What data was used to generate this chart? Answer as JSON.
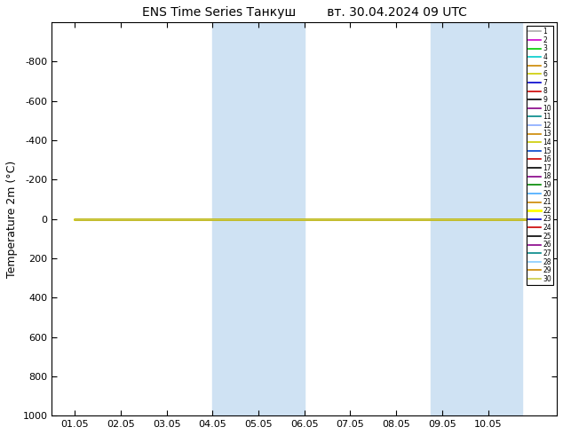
{
  "title": "ENS Time Series Танкуш        вт. 30.04.2024 09 UTC",
  "ylabel": "Temperature 2m (°C)",
  "ylim": [
    -1000,
    1000
  ],
  "yticks": [
    -800,
    -600,
    -400,
    -200,
    0,
    200,
    400,
    600,
    800,
    1000
  ],
  "ytick_labels": [
    "-800",
    "-600",
    "-400",
    "-200",
    "0",
    "200",
    "400",
    "600",
    "800",
    "1000"
  ],
  "xtick_labels": [
    "01.05",
    "02.05",
    "03.05",
    "04.05",
    "05.05",
    "06.05",
    "07.05",
    "08.05",
    "09.05",
    "10.05"
  ],
  "xtick_positions": [
    0,
    1,
    2,
    3,
    4,
    5,
    6,
    7,
    8,
    9
  ],
  "xlim": [
    -0.5,
    10.5
  ],
  "shade_regions": [
    [
      3.0,
      4.0
    ],
    [
      4.0,
      5.0
    ],
    [
      7.75,
      8.75
    ],
    [
      8.75,
      9.75
    ]
  ],
  "shade_color": "#cfe2f3",
  "line_colors": [
    "#aaaaaa",
    "#cc00cc",
    "#00cc00",
    "#00cccc",
    "#cc8800",
    "#cccc00",
    "#0000cc",
    "#cc0000",
    "#000000",
    "#880088",
    "#008888",
    "#88aaff",
    "#cc8800",
    "#cccc00",
    "#0044cc",
    "#cc0000",
    "#000000",
    "#880088",
    "#008800",
    "#44aaff",
    "#cc8800",
    "#ffff00",
    "#0000cc",
    "#cc0000",
    "#000000",
    "#880088",
    "#008888",
    "#88ccff",
    "#cc8800",
    "#cccc44"
  ],
  "line_labels": [
    "1",
    "2",
    "3",
    "4",
    "5",
    "6",
    "7",
    "8",
    "9",
    "10",
    "11",
    "12",
    "13",
    "14",
    "15",
    "16",
    "17",
    "18",
    "19",
    "20",
    "21",
    "22",
    "23",
    "24",
    "25",
    "26",
    "27",
    "28",
    "29",
    "30"
  ],
  "prominent_line_idx": 21,
  "constant_y": 0,
  "bg_color": "#ffffff"
}
